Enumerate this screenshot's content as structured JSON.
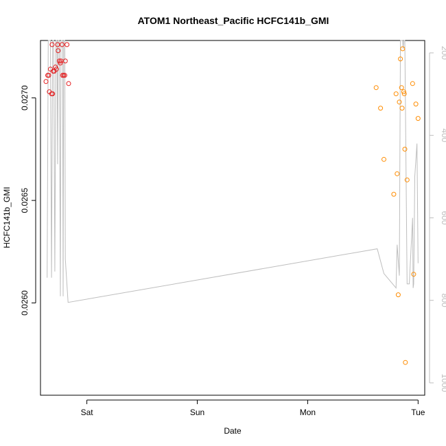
{
  "chart_data": {
    "type": "scatter",
    "title": "ATOM1 Northeast_Pacific HCFC141b_GMI",
    "xlabel": "Date",
    "ylabel": "HCFC141b_GMI",
    "x_ticks": [
      "Sat",
      "Sun",
      "Mon",
      "Tue"
    ],
    "x_range_days": [
      -0.42,
      3.06
    ],
    "ylim": [
      0.02555,
      0.02728
    ],
    "y_ticks": [
      "0.0260",
      "0.0265",
      "0.0270"
    ],
    "y2lim": [
      1030,
      170
    ],
    "y2_ticks": [
      "200",
      "400",
      "600",
      "800",
      "1000"
    ],
    "legend": "none",
    "grid": false,
    "colors": {
      "series_red": "#e31a1c",
      "series_orange": "#ff8c00",
      "altitude_line": "#bdbdbd",
      "right_axis": "#bdbdbd"
    },
    "series": [
      {
        "color": "red",
        "points": [
          {
            "x": -0.37,
            "y": 0.02708
          },
          {
            "x": -0.355,
            "y": 0.02711
          },
          {
            "x": -0.345,
            "y": 0.02711
          },
          {
            "x": -0.34,
            "y": 0.02703
          },
          {
            "x": -0.33,
            "y": 0.02714
          },
          {
            "x": -0.32,
            "y": 0.02702
          },
          {
            "x": -0.31,
            "y": 0.02702
          },
          {
            "x": -0.315,
            "y": 0.02726
          },
          {
            "x": -0.305,
            "y": 0.02713
          },
          {
            "x": -0.295,
            "y": 0.02713
          },
          {
            "x": -0.285,
            "y": 0.02715
          },
          {
            "x": -0.275,
            "y": 0.02714
          },
          {
            "x": -0.265,
            "y": 0.02726
          },
          {
            "x": -0.26,
            "y": 0.02723
          },
          {
            "x": -0.25,
            "y": 0.02718
          },
          {
            "x": -0.24,
            "y": 0.02717
          },
          {
            "x": -0.235,
            "y": 0.02718
          },
          {
            "x": -0.225,
            "y": 0.02726
          },
          {
            "x": -0.22,
            "y": 0.02711
          },
          {
            "x": -0.21,
            "y": 0.02711
          },
          {
            "x": -0.2,
            "y": 0.02711
          },
          {
            "x": -0.195,
            "y": 0.02718
          },
          {
            "x": -0.18,
            "y": 0.02726
          },
          {
            "x": -0.165,
            "y": 0.02707
          }
        ]
      },
      {
        "color": "orange",
        "points": [
          {
            "x": 2.62,
            "y": 0.02705
          },
          {
            "x": 2.66,
            "y": 0.02695
          },
          {
            "x": 2.69,
            "y": 0.0267
          },
          {
            "x": 2.78,
            "y": 0.02653
          },
          {
            "x": 2.8,
            "y": 0.02702
          },
          {
            "x": 2.81,
            "y": 0.02663
          },
          {
            "x": 2.82,
            "y": 0.02604
          },
          {
            "x": 2.83,
            "y": 0.02698
          },
          {
            "x": 2.84,
            "y": 0.02719
          },
          {
            "x": 2.85,
            "y": 0.02705
          },
          {
            "x": 2.855,
            "y": 0.02695
          },
          {
            "x": 2.86,
            "y": 0.02724
          },
          {
            "x": 2.87,
            "y": 0.02703
          },
          {
            "x": 2.875,
            "y": 0.02702
          },
          {
            "x": 2.88,
            "y": 0.02675
          },
          {
            "x": 2.885,
            "y": 0.02571
          },
          {
            "x": 2.9,
            "y": 0.0266
          },
          {
            "x": 2.95,
            "y": 0.02707
          },
          {
            "x": 2.96,
            "y": 0.02614
          },
          {
            "x": 2.98,
            "y": 0.02697
          },
          {
            "x": 3.0,
            "y": 0.0269
          }
        ]
      }
    ],
    "altitude_line": [
      [
        -0.36,
        745
      ],
      [
        -0.35,
        170
      ],
      [
        -0.33,
        170
      ],
      [
        -0.32,
        745
      ],
      [
        -0.31,
        170
      ],
      [
        -0.3,
        170
      ],
      [
        -0.29,
        730
      ],
      [
        -0.28,
        170
      ],
      [
        -0.27,
        170
      ],
      [
        -0.265,
        470
      ],
      [
        -0.26,
        170
      ],
      [
        -0.25,
        170
      ],
      [
        -0.24,
        790
      ],
      [
        -0.235,
        170
      ],
      [
        -0.22,
        170
      ],
      [
        -0.215,
        790
      ],
      [
        -0.21,
        170
      ],
      [
        -0.2,
        170
      ],
      [
        -0.195,
        700
      ],
      [
        -0.17,
        805
      ],
      [
        2.63,
        675
      ],
      [
        2.69,
        735
      ],
      [
        2.8,
        770
      ],
      [
        2.81,
        665
      ],
      [
        2.83,
        740
      ],
      [
        2.84,
        170
      ],
      [
        2.86,
        170
      ],
      [
        2.865,
        190
      ],
      [
        2.87,
        170
      ],
      [
        2.88,
        170
      ],
      [
        2.9,
        760
      ],
      [
        2.92,
        760
      ],
      [
        2.95,
        600
      ],
      [
        2.955,
        770
      ],
      [
        2.96,
        760
      ],
      [
        2.97,
        500
      ],
      [
        2.99,
        420
      ],
      [
        3.0,
        710
      ]
    ]
  }
}
